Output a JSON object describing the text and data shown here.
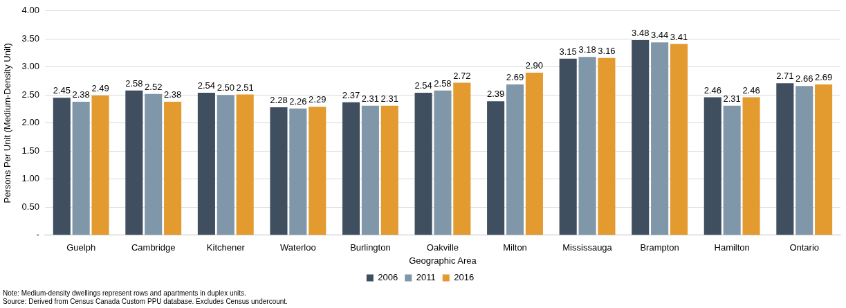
{
  "chart_data": {
    "type": "bar",
    "xlabel": "Geographic Area",
    "ylabel": "Persons Per Unit (Medium-Density Unit)",
    "categories": [
      "Guelph",
      "Cambridge",
      "Kitchener",
      "Waterloo",
      "Burlington",
      "Oakville",
      "Milton",
      "Mississauga",
      "Brampton",
      "Hamilton",
      "Ontario"
    ],
    "series": [
      {
        "name": "2006",
        "color": "#404f5f",
        "values": [
          2.45,
          2.58,
          2.54,
          2.28,
          2.37,
          2.54,
          2.39,
          3.15,
          3.48,
          2.46,
          2.71
        ],
        "value_labels": [
          "2.45",
          "2.58",
          "2.54",
          "2.28",
          "2.37",
          "2.54",
          "2.39",
          "3.15",
          "3.48",
          "2.46",
          "2.71"
        ]
      },
      {
        "name": "2011",
        "color": "#8097aa",
        "values": [
          2.38,
          2.52,
          2.5,
          2.26,
          2.31,
          2.58,
          2.69,
          3.18,
          3.44,
          2.31,
          2.66
        ],
        "value_labels": [
          "2.38",
          "2.52",
          "2.50",
          "2.26",
          "2.31",
          "2.58",
          "2.69",
          "3.18",
          "3.44",
          "2.31",
          "2.66"
        ]
      },
      {
        "name": "2016",
        "color": "#e39a2f",
        "values": [
          2.49,
          2.38,
          2.51,
          2.29,
          2.31,
          2.72,
          2.9,
          3.16,
          3.41,
          2.46,
          2.69
        ],
        "value_labels": [
          "2.49",
          "2.38",
          "2.51",
          "2.29",
          "2.31",
          "2.72",
          "2.90",
          "3.16",
          "3.41",
          "2.46",
          "2.69"
        ]
      }
    ],
    "ylim": [
      0,
      4
    ],
    "yticks": [
      {
        "value": 0,
        "label": "-"
      },
      {
        "value": 0.5,
        "label": "0.50"
      },
      {
        "value": 1,
        "label": "1.00"
      },
      {
        "value": 1.5,
        "label": "1.50"
      },
      {
        "value": 2,
        "label": "2.00"
      },
      {
        "value": 2.5,
        "label": "2.50"
      },
      {
        "value": 3,
        "label": "3.00"
      },
      {
        "value": 3.5,
        "label": "3.50"
      },
      {
        "value": 4,
        "label": "4.00"
      }
    ],
    "grid": "y",
    "legend": "bottom",
    "annotations": [
      "Note: Medium-density dwellings represent rows and apartments in duplex units.",
      "Source: Derived from Census Canada Custom PPU database. Excludes Census undercount."
    ]
  }
}
